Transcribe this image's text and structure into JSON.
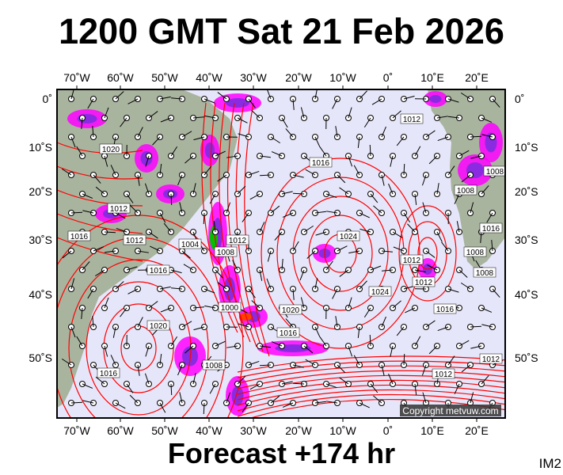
{
  "title": "1200 GMT Sat 21 Feb 2026",
  "footer": "Forecast +174 hr",
  "corner_label": "IM2",
  "copyright": "Copyright metvuw.com",
  "longitude_ticks": [
    "70˚W",
    "60˚W",
    "50˚W",
    "40˚W",
    "30˚W",
    "20˚W",
    "10˚W",
    "0˚",
    "10˚E",
    "20˚E"
  ],
  "latitude_ticks": [
    "0˚",
    "10˚S",
    "20˚S",
    "30˚S",
    "40˚S",
    "50˚S"
  ],
  "isobar_labels": [
    "1012",
    "1016",
    "1008",
    "1012",
    "1016",
    "1016",
    "1012",
    "1020",
    "1016",
    "1012",
    "1008",
    "1012",
    "1004",
    "1000",
    "1008",
    "1012",
    "1016",
    "1020",
    "1024",
    "1024",
    "1020",
    "1016",
    "1012",
    "1008",
    "1008",
    "1016",
    "1012",
    "1008"
  ],
  "colors": {
    "ocean": "#e6e6fa",
    "land": "#a9b49f",
    "isobar": "#ff0000",
    "precip_light": "#ff00ff",
    "precip_mid": "#8a2be2",
    "precip_heavy": "#0000ff"
  }
}
